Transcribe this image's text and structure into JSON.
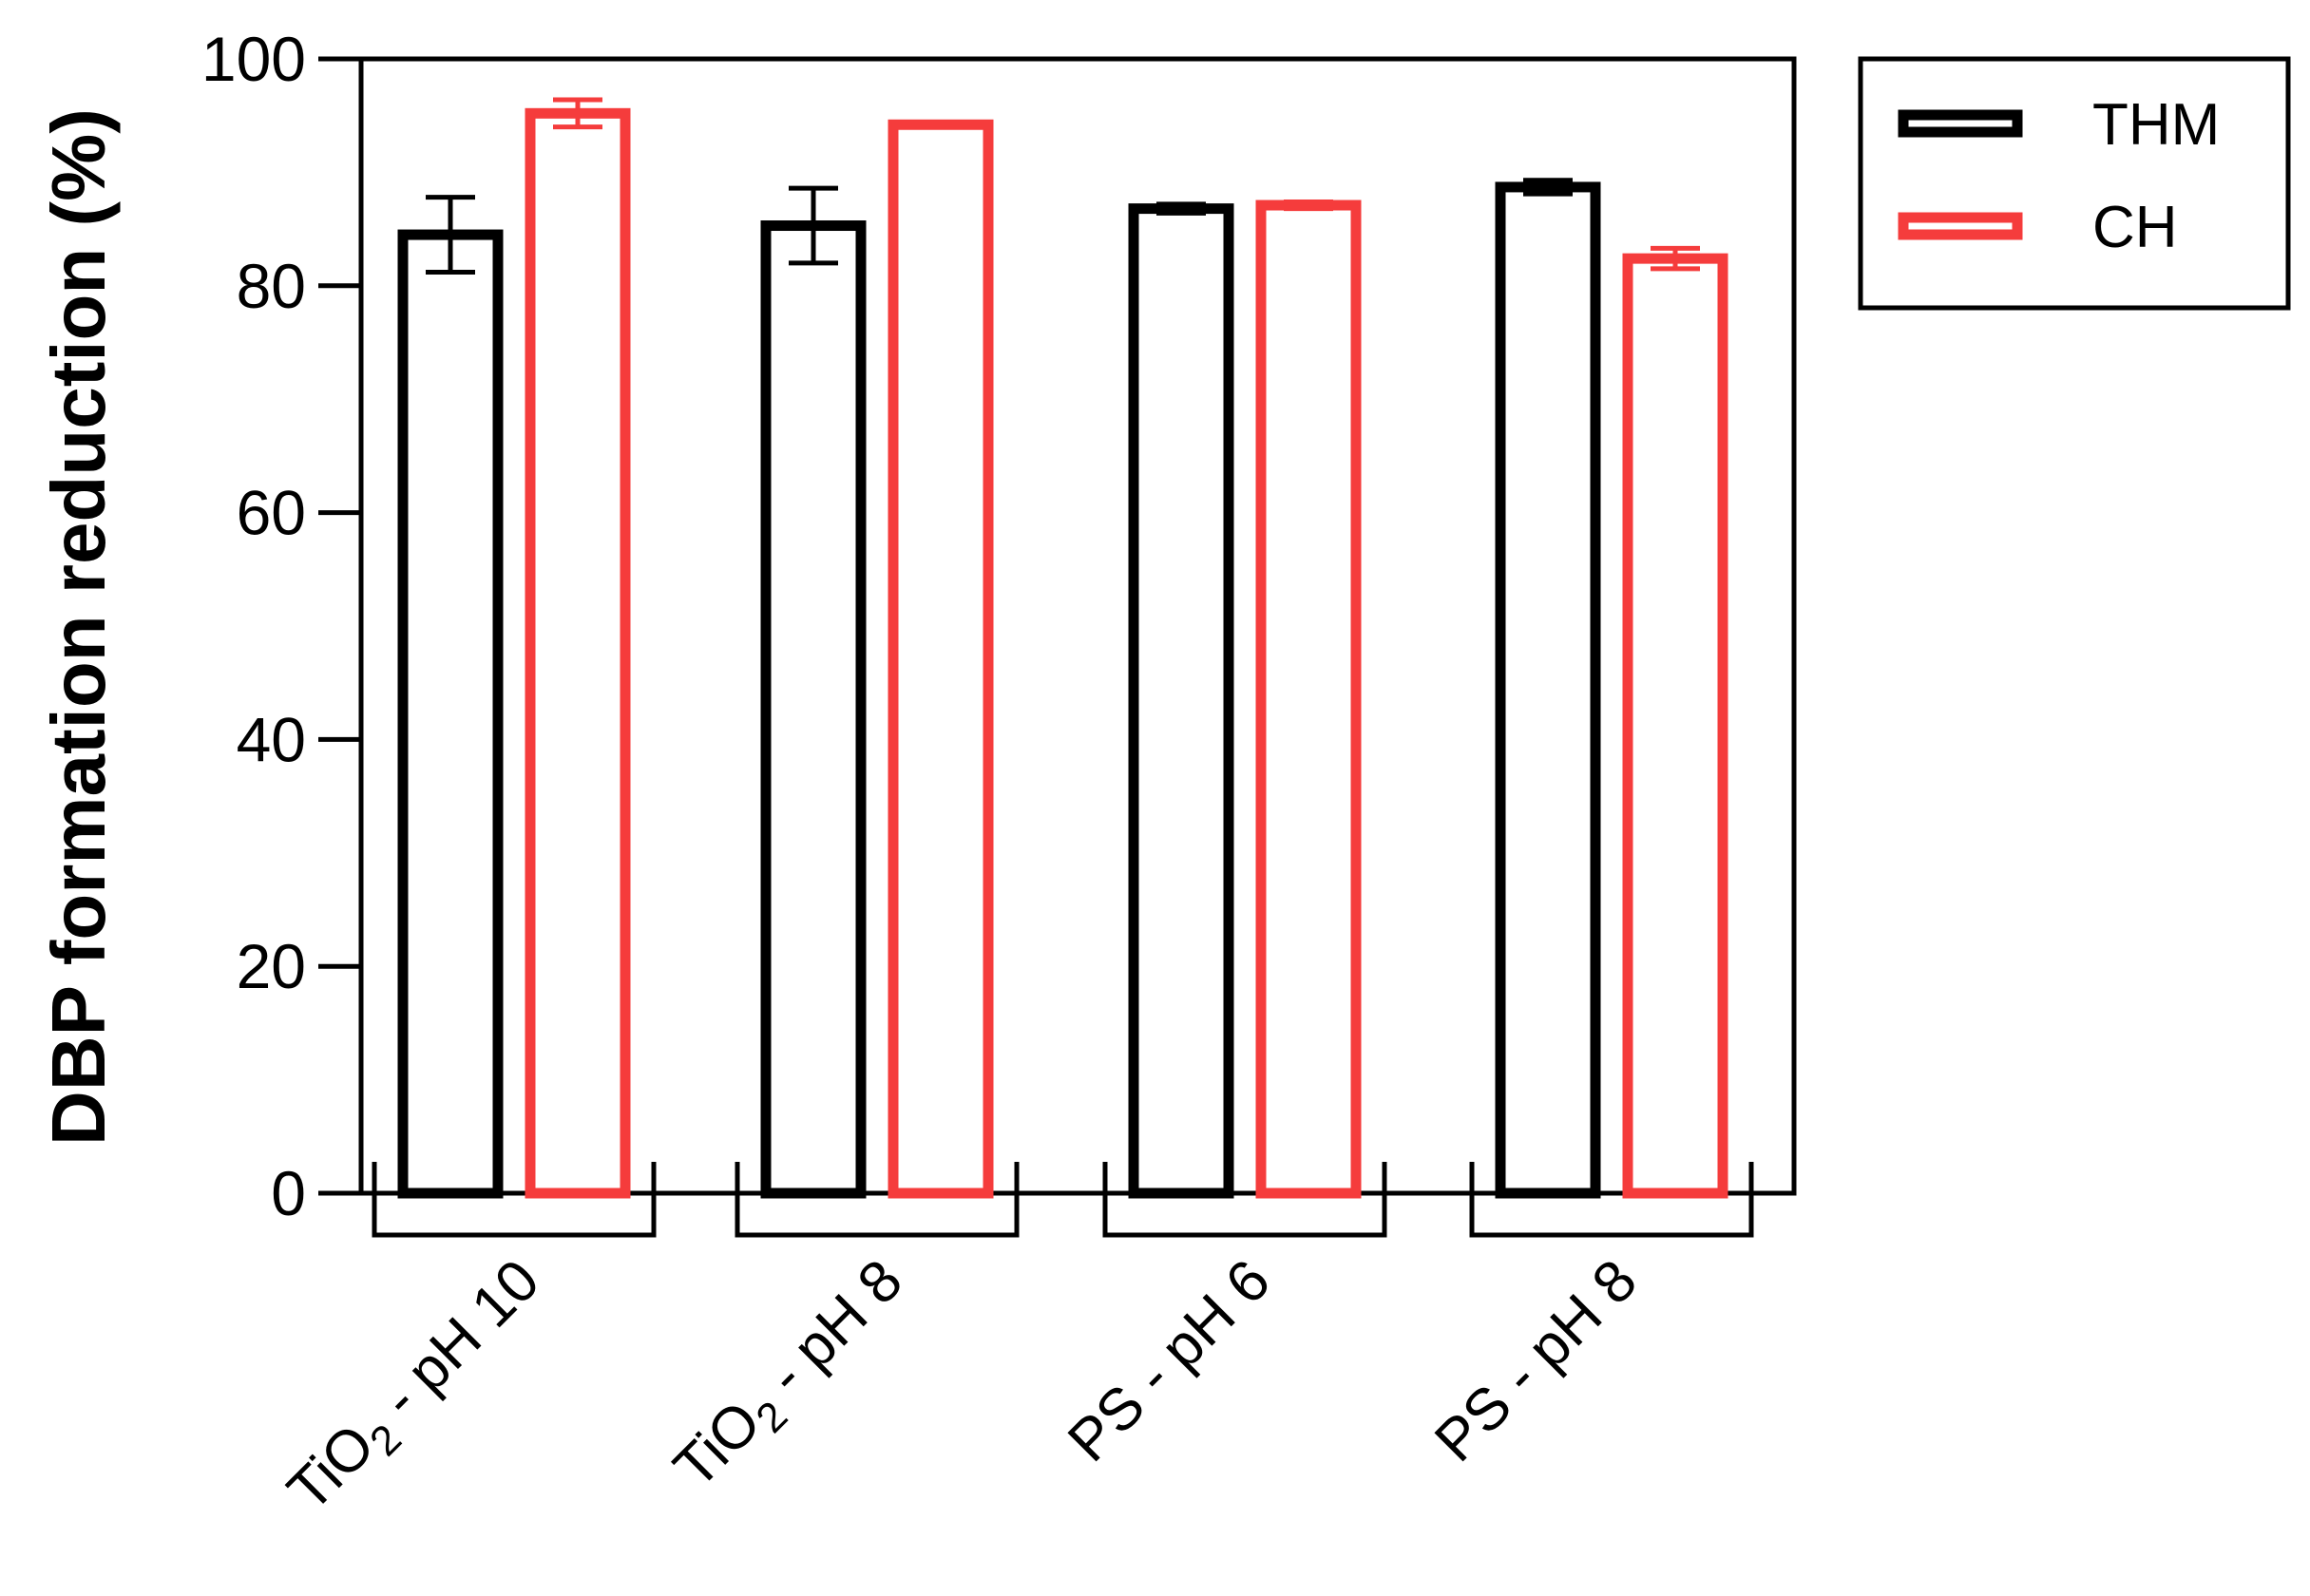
{
  "chart_data": {
    "type": "bar",
    "ylabel": "DBP formation reduction (%)",
    "xlabel": "",
    "ylim": [
      0,
      100
    ],
    "yticks": [
      0,
      20,
      40,
      60,
      80,
      100
    ],
    "categories": [
      {
        "main": "TiO",
        "sub": "2",
        "rest": " - pH 10"
      },
      {
        "main": "TiO",
        "sub": "2",
        "rest": " - pH 8"
      },
      {
        "main": "PS - pH 6",
        "sub": "",
        "rest": ""
      },
      {
        "main": "PS - pH 8",
        "sub": "",
        "rest": ""
      }
    ],
    "series": [
      {
        "name": "THM",
        "color": "#000000",
        "values": [
          84.5,
          85.3,
          86.8,
          88.7
        ],
        "errors": [
          3.3,
          3.3,
          0.4,
          0.6
        ]
      },
      {
        "name": "CH",
        "color": "#f53c3c",
        "values": [
          95.2,
          94.2,
          87.1,
          82.4
        ],
        "errors": [
          1.2,
          0.2,
          0.3,
          0.9
        ]
      }
    ],
    "legend_position": "top-right",
    "grid": false
  }
}
